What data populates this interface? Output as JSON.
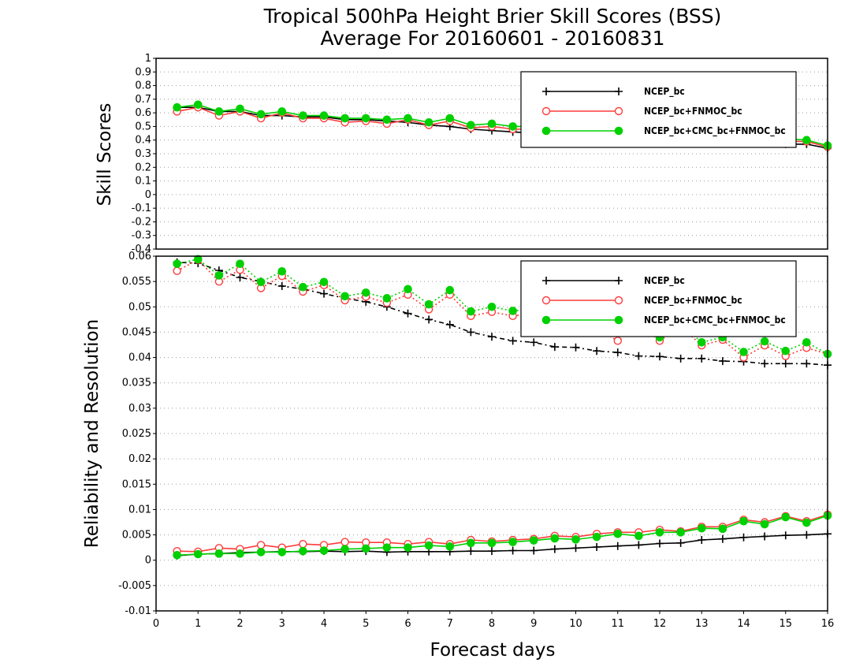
{
  "chart_data": [
    {
      "type": "line",
      "title": "Tropical 500hPa Height Brier Skill Scores (BSS)",
      "subtitle": "Average For 20160601 - 20160831",
      "xlabel": "",
      "ylabel": "Skill Scores",
      "xlim": [
        0,
        16
      ],
      "ylim": [
        -0.4,
        1
      ],
      "y_ticks": [
        "-0.4",
        "-0.3",
        "-0.2",
        "-0.1",
        "0",
        "0.1",
        "0.2",
        "0.3",
        "0.4",
        "0.5",
        "0.6",
        "0.7",
        "0.8",
        "0.9",
        "1"
      ],
      "grid": true,
      "legend_position": "top-right",
      "x": [
        0.5,
        1,
        1.5,
        2,
        2.5,
        3,
        3.5,
        4,
        4.5,
        5,
        5.5,
        6,
        6.5,
        7,
        7.5,
        8,
        8.5,
        9,
        9.5,
        10,
        10.5,
        11,
        11.5,
        12,
        12.5,
        13,
        13.5,
        14,
        14.5,
        15,
        15.5,
        16
      ],
      "series": [
        {
          "name": "NCEP_bc",
          "color": "#000000",
          "marker": "plus",
          "values": [
            0.64,
            0.64,
            0.61,
            0.61,
            0.58,
            0.58,
            0.57,
            0.57,
            0.55,
            0.55,
            0.54,
            0.53,
            0.51,
            0.5,
            0.48,
            0.47,
            0.46,
            0.45,
            0.44,
            0.44,
            0.43,
            0.42,
            0.42,
            0.41,
            0.41,
            0.4,
            0.4,
            0.39,
            0.38,
            0.37,
            0.37,
            0.34
          ]
        },
        {
          "name": "NCEP_bc+FNMOC_bc",
          "color": "#ff3b3b",
          "marker": "circle",
          "values": [
            0.61,
            0.64,
            0.58,
            0.61,
            0.56,
            0.6,
            0.56,
            0.56,
            0.53,
            0.54,
            0.52,
            0.55,
            0.51,
            0.54,
            0.49,
            0.5,
            0.48,
            0.48,
            0.46,
            0.46,
            0.45,
            0.45,
            0.44,
            0.44,
            0.43,
            0.42,
            0.41,
            0.41,
            0.39,
            0.39,
            0.39,
            0.35
          ]
        },
        {
          "name": "NCEP_bc+CMC_bc+FNMOC_bc",
          "color": "#00d000",
          "marker": "dot",
          "values": [
            0.64,
            0.66,
            0.61,
            0.63,
            0.59,
            0.61,
            0.58,
            0.58,
            0.56,
            0.56,
            0.55,
            0.56,
            0.53,
            0.56,
            0.51,
            0.52,
            0.5,
            0.5,
            0.48,
            0.48,
            0.47,
            0.47,
            0.46,
            0.46,
            0.45,
            0.44,
            0.43,
            0.43,
            0.41,
            0.41,
            0.4,
            0.36
          ]
        }
      ]
    },
    {
      "type": "line",
      "xlabel": "Forecast days",
      "ylabel": "Reliability and Resolution",
      "xlim": [
        0,
        16
      ],
      "ylim": [
        -0.01,
        0.06
      ],
      "x_ticks": [
        "0",
        "1",
        "2",
        "3",
        "4",
        "5",
        "6",
        "7",
        "8",
        "9",
        "10",
        "11",
        "12",
        "13",
        "14",
        "15",
        "16"
      ],
      "y_ticks": [
        "-0.01",
        "-0.005",
        "0",
        "0.005",
        "0.01",
        "0.015",
        "0.02",
        "0.025",
        "0.03",
        "0.035",
        "0.04",
        "0.045",
        "0.05",
        "0.055",
        "0.06"
      ],
      "grid": true,
      "legend_position": "top-right",
      "x": [
        0.5,
        1,
        1.5,
        2,
        2.5,
        3,
        3.5,
        4,
        4.5,
        5,
        5.5,
        6,
        6.5,
        7,
        7.5,
        8,
        8.5,
        9,
        9.5,
        10,
        10.5,
        11,
        11.5,
        12,
        12.5,
        13,
        13.5,
        14,
        14.5,
        15,
        15.5,
        16
      ],
      "series": [
        {
          "name": "NCEP_bc",
          "component": "resolution",
          "line": "dotted",
          "color": "#000000",
          "marker": "plus",
          "values": [
            0.0588,
            0.0586,
            0.0572,
            0.0558,
            0.055,
            0.0541,
            0.0535,
            0.0526,
            0.0517,
            0.051,
            0.05,
            0.0487,
            0.0475,
            0.0465,
            0.045,
            0.0441,
            0.0433,
            0.043,
            0.0421,
            0.042,
            0.0413,
            0.041,
            0.0403,
            0.0402,
            0.0398,
            0.0398,
            0.0393,
            0.0392,
            0.0388,
            0.0388,
            0.0388,
            0.0385
          ]
        },
        {
          "name": "NCEP_bc+FNMOC_bc",
          "component": "resolution",
          "line": "dotted",
          "color": "#ff3b3b",
          "marker": "circle",
          "values": [
            0.0571,
            0.0593,
            0.055,
            0.0573,
            0.0537,
            0.0561,
            0.053,
            0.0543,
            0.0513,
            0.052,
            0.0508,
            0.0524,
            0.0495,
            0.0524,
            0.0482,
            0.049,
            0.0482,
            0.0487,
            0.047,
            0.0474,
            0.0458,
            0.0433,
            0.0466,
            0.0433,
            0.0461,
            0.0424,
            0.0435,
            0.04,
            0.0424,
            0.0403,
            0.0419,
            0.0407
          ]
        },
        {
          "name": "NCEP_bc+CMC_bc+FNMOC_bc",
          "component": "resolution",
          "line": "dotted",
          "color": "#00d000",
          "marker": "dot",
          "values": [
            0.0585,
            0.0594,
            0.0562,
            0.0585,
            0.0549,
            0.057,
            0.0539,
            0.0549,
            0.0521,
            0.0528,
            0.0517,
            0.0535,
            0.0505,
            0.0533,
            0.0491,
            0.05,
            0.0492,
            0.0495,
            0.048,
            0.0482,
            0.0466,
            0.046,
            0.047,
            0.044,
            0.0465,
            0.043,
            0.044,
            0.0411,
            0.0432,
            0.0413,
            0.043,
            0.0407
          ]
        },
        {
          "name": "NCEP_bc",
          "component": "reliability",
          "line": "solid",
          "color": "#000000",
          "marker": "plus",
          "values": [
            0.0009,
            0.0012,
            0.0013,
            0.0015,
            0.0016,
            0.0017,
            0.0017,
            0.0018,
            0.0017,
            0.0018,
            0.0016,
            0.0017,
            0.0017,
            0.0017,
            0.0018,
            0.0018,
            0.0019,
            0.0019,
            0.0022,
            0.0024,
            0.0026,
            0.0028,
            0.003,
            0.0033,
            0.0034,
            0.004,
            0.0042,
            0.0045,
            0.0047,
            0.0049,
            0.005,
            0.0052
          ]
        },
        {
          "name": "NCEP_bc+FNMOC_bc",
          "component": "reliability",
          "line": "solid",
          "color": "#ff3b3b",
          "marker": "circle",
          "values": [
            0.0018,
            0.0017,
            0.0024,
            0.0022,
            0.003,
            0.0025,
            0.0032,
            0.003,
            0.0036,
            0.0035,
            0.0035,
            0.0032,
            0.0036,
            0.0032,
            0.004,
            0.0037,
            0.004,
            0.0042,
            0.0048,
            0.0046,
            0.0052,
            0.0055,
            0.0055,
            0.006,
            0.0057,
            0.0066,
            0.0066,
            0.008,
            0.0075,
            0.0087,
            0.0077,
            0.009
          ]
        },
        {
          "name": "NCEP_bc+CMC_bc+FNMOC_bc",
          "component": "reliability",
          "line": "solid",
          "color": "#00d000",
          "marker": "dot",
          "values": [
            0.001,
            0.0012,
            0.0013,
            0.0013,
            0.0016,
            0.0016,
            0.0018,
            0.0019,
            0.0022,
            0.0023,
            0.0025,
            0.0025,
            0.0029,
            0.0027,
            0.0034,
            0.0034,
            0.0036,
            0.0039,
            0.0043,
            0.0041,
            0.0046,
            0.0052,
            0.0048,
            0.0055,
            0.0055,
            0.0063,
            0.0062,
            0.0077,
            0.0071,
            0.0085,
            0.0074,
            0.0088
          ]
        }
      ]
    }
  ]
}
